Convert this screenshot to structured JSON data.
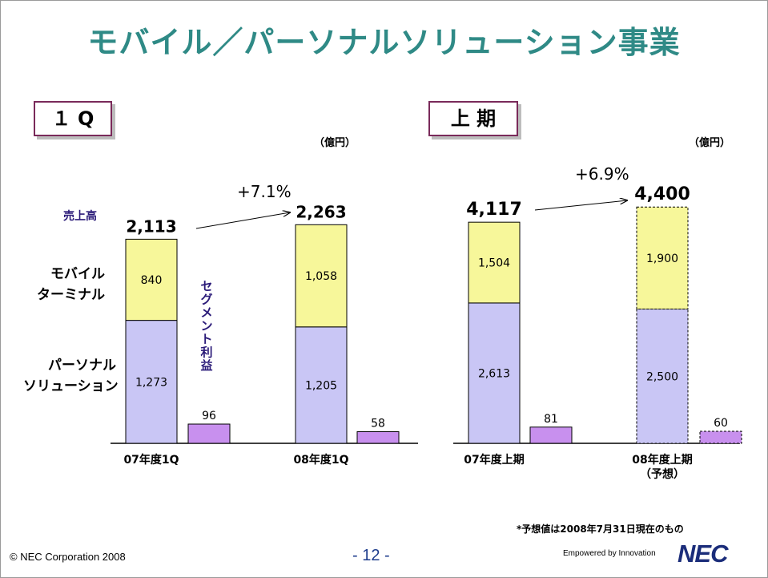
{
  "slide": {
    "title": "モバイル／パーソナルソリューション事業",
    "footer_copyright": "© NEC Corporation 2008",
    "page_number": "- 12 -",
    "note": "*予想値は2008年7月31日現在のもの",
    "tagline": "Empowered by Innovation",
    "logo_text": "NEC"
  },
  "labels": {
    "sales": "売上高",
    "mobile_terminal": [
      "モバイル",
      "ターミナル"
    ],
    "personal_solution": [
      "パーソナル",
      "ソリューション"
    ],
    "segment_profit": [
      "セ",
      "グ",
      "メ",
      "ン",
      "ト",
      "利",
      "益"
    ]
  },
  "colors": {
    "title": "#2f8a86",
    "mobile_terminal": "#f7f79a",
    "personal_solution": "#c9c6f5",
    "segment_profit": "#c890ee",
    "label_text": "#2a1a78"
  },
  "chart_data": [
    {
      "type": "bar",
      "panel_title": "１ Q",
      "unit": "（億円）",
      "categories": [
        "07年度1Q",
        "08年度1Q"
      ],
      "category_lines": [
        [
          "07年度1Q"
        ],
        [
          "08年度1Q"
        ]
      ],
      "stacked_series": [
        {
          "name": "パーソナルソリューション",
          "values": [
            1273,
            1205
          ],
          "labels": [
            "1,273",
            "1,205"
          ]
        },
        {
          "name": "モバイルターミナル",
          "values": [
            840,
            1058
          ],
          "labels": [
            "840",
            "1,058"
          ]
        }
      ],
      "totals": [
        2113,
        2263
      ],
      "total_labels": [
        "2,113",
        "2,263"
      ],
      "profit_series": {
        "name": "セグメント利益",
        "values": [
          96,
          58
        ],
        "labels": [
          "96",
          "58"
        ]
      },
      "growth_label": "+7.1%",
      "forecast": [
        false,
        false
      ]
    },
    {
      "type": "bar",
      "panel_title": "上 期",
      "unit": "（億円）",
      "categories": [
        "07年度上期",
        "08年度上期（予想）"
      ],
      "category_lines": [
        [
          "07年度上期"
        ],
        [
          "08年度上期",
          "（予想）"
        ]
      ],
      "stacked_series": [
        {
          "name": "パーソナルソリューション",
          "values": [
            2613,
            2500
          ],
          "labels": [
            "2,613",
            "2,500"
          ]
        },
        {
          "name": "モバイルターミナル",
          "values": [
            1504,
            1900
          ],
          "labels": [
            "1,504",
            "1,900"
          ]
        }
      ],
      "totals": [
        4117,
        4400
      ],
      "total_labels": [
        "4,117",
        "4,400"
      ],
      "profit_series": {
        "name": "セグメント利益",
        "values": [
          81,
          60
        ],
        "labels": [
          "81",
          "60"
        ]
      },
      "growth_label": "+6.9%",
      "forecast": [
        false,
        true
      ]
    }
  ]
}
